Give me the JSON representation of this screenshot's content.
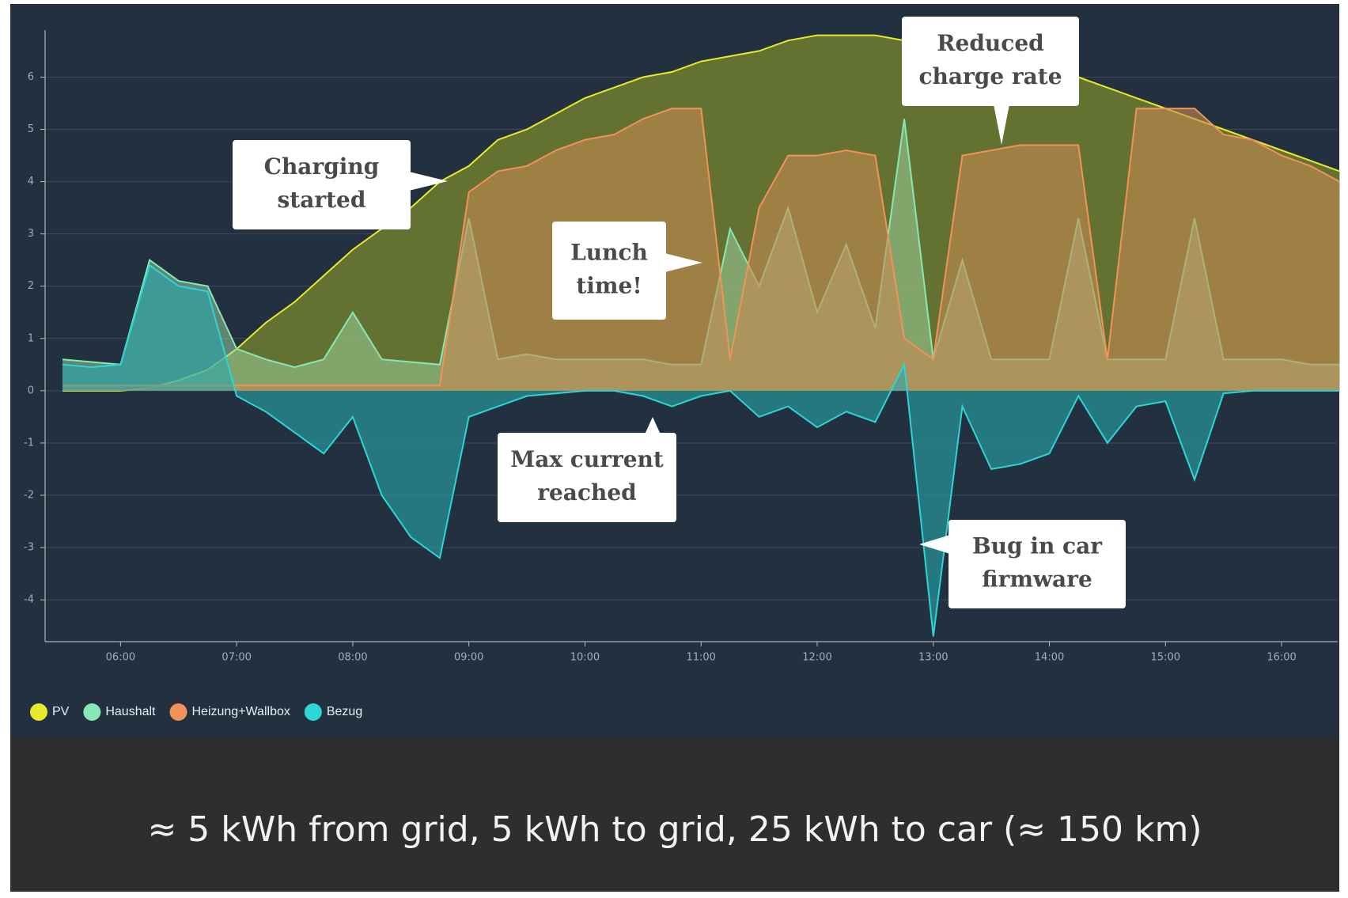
{
  "chart_data": {
    "type": "area",
    "x": [
      "05:30",
      "05:45",
      "06:00",
      "06:15",
      "06:30",
      "06:45",
      "07:00",
      "07:15",
      "07:30",
      "07:45",
      "08:00",
      "08:15",
      "08:30",
      "08:45",
      "09:00",
      "09:15",
      "09:30",
      "09:45",
      "10:00",
      "10:15",
      "10:30",
      "10:45",
      "11:00",
      "11:15",
      "11:30",
      "11:45",
      "12:00",
      "12:15",
      "12:30",
      "12:45",
      "13:00",
      "13:15",
      "13:30",
      "13:45",
      "14:00",
      "14:15",
      "14:30",
      "14:45",
      "15:00",
      "15:15",
      "15:30",
      "15:45",
      "16:00",
      "16:15",
      "16:30"
    ],
    "series": [
      {
        "name": "PV",
        "color": "#e8e82c",
        "values": [
          0,
          0,
          0,
          0.05,
          0.2,
          0.4,
          0.8,
          1.3,
          1.7,
          2.2,
          2.7,
          3.1,
          3.5,
          4.0,
          4.3,
          4.8,
          5.0,
          5.3,
          5.6,
          5.8,
          6.0,
          6.1,
          6.3,
          6.4,
          6.5,
          6.7,
          6.8,
          6.8,
          6.8,
          6.7,
          6.7,
          6.6,
          6.5,
          6.4,
          6.2,
          6.0,
          5.8,
          5.6,
          5.4,
          5.2,
          5.0,
          4.8,
          4.6,
          4.4,
          4.2
        ]
      },
      {
        "name": "Haushalt",
        "color": "#86e8b4",
        "values": [
          0.6,
          0.55,
          0.5,
          2.5,
          2.1,
          2.0,
          0.8,
          0.6,
          0.45,
          0.6,
          1.5,
          0.6,
          0.55,
          0.5,
          3.3,
          0.6,
          0.7,
          0.6,
          0.6,
          0.6,
          0.6,
          0.5,
          0.5,
          3.1,
          2.0,
          3.5,
          1.5,
          2.8,
          1.2,
          5.2,
          0.6,
          2.5,
          0.6,
          0.6,
          0.6,
          3.3,
          0.6,
          0.6,
          0.6,
          3.3,
          0.6,
          0.6,
          0.6,
          0.5,
          0.5
        ]
      },
      {
        "name": "Heizung+Wallbox",
        "color": "#f29258",
        "values": [
          0.1,
          0.1,
          0.1,
          0.1,
          0.1,
          0.1,
          0.1,
          0.1,
          0.1,
          0.1,
          0.1,
          0.1,
          0.1,
          0.1,
          3.8,
          4.2,
          4.3,
          4.6,
          4.8,
          4.9,
          5.2,
          5.4,
          5.4,
          0.6,
          3.5,
          4.5,
          4.5,
          4.6,
          4.5,
          1.0,
          0.6,
          4.5,
          4.6,
          4.7,
          4.7,
          4.7,
          0.6,
          5.4,
          5.4,
          5.4,
          4.9,
          4.8,
          4.5,
          4.3,
          4.0
        ]
      },
      {
        "name": "Bezug",
        "color": "#2cd6d6",
        "values": [
          0.5,
          0.45,
          0.5,
          2.4,
          2.0,
          1.9,
          -0.1,
          -0.4,
          -0.8,
          -1.2,
          -0.5,
          -2.0,
          -2.8,
          -3.2,
          -0.5,
          -0.3,
          -0.1,
          -0.05,
          0,
          0,
          -0.1,
          -0.3,
          -0.1,
          0,
          -0.5,
          -0.3,
          -0.7,
          -0.4,
          -0.6,
          0.5,
          -4.7,
          -0.3,
          -1.5,
          -1.4,
          -1.2,
          -0.1,
          -1.0,
          -0.3,
          -0.2,
          -1.7,
          -0.05,
          0,
          0,
          0,
          0
        ]
      }
    ],
    "xlim": [
      "05:21",
      "16:29"
    ],
    "xticks": [
      "06:00",
      "07:00",
      "08:00",
      "09:00",
      "10:00",
      "11:00",
      "12:00",
      "13:00",
      "14:00",
      "15:00",
      "16:00"
    ],
    "ylim": [
      -4.8,
      6.9
    ],
    "yticks": [
      -4,
      -3,
      -2,
      -1,
      0,
      1,
      2,
      3,
      4,
      5,
      6
    ],
    "grid": true,
    "annotations": [
      {
        "lines": [
          "Charging",
          "started"
        ]
      },
      {
        "lines": [
          "Reduced",
          "charge rate"
        ]
      },
      {
        "lines": [
          "Lunch",
          "time!"
        ]
      },
      {
        "lines": [
          "Max current",
          "reached"
        ]
      },
      {
        "lines": [
          "Bug in car",
          "firmware"
        ]
      }
    ],
    "footer": "≈ 5 kWh from grid, 5 kWh to grid, 25 kWh to car (≈ 150 km)"
  }
}
